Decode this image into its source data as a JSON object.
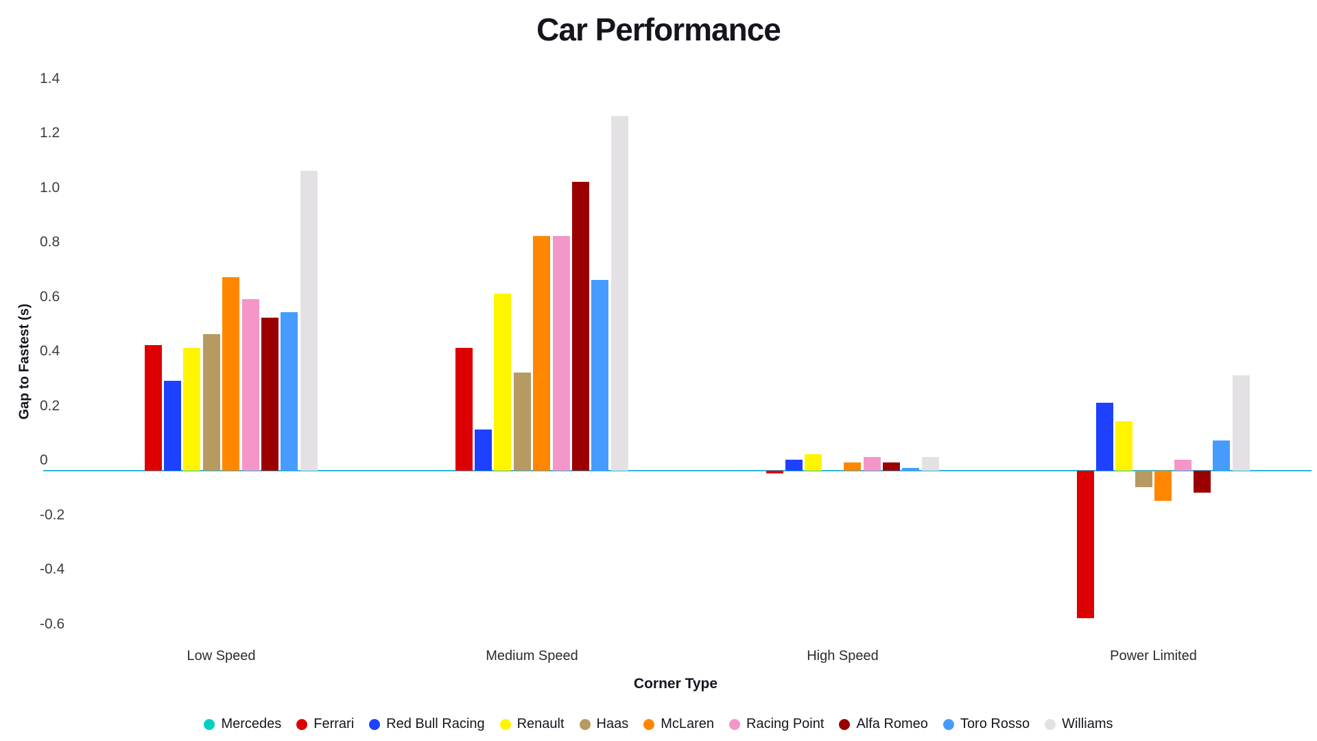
{
  "title": "Car Performance",
  "chart_data": {
    "type": "bar",
    "title": "Car Performance",
    "xlabel": "Corner Type",
    "ylabel": "Gap to Fastest (s)",
    "categories": [
      "Low Speed",
      "Medium Speed",
      "High Speed",
      "Power Limited"
    ],
    "series": [
      {
        "name": "Mercedes",
        "color": "#00D2BE",
        "values": [
          0.0,
          0.0,
          0.0,
          0.0
        ]
      },
      {
        "name": "Ferrari",
        "color": "#DC0000",
        "values": [
          0.46,
          0.45,
          -0.01,
          -0.54
        ]
      },
      {
        "name": "Red Bull Racing",
        "color": "#1E41FF",
        "values": [
          0.33,
          0.15,
          0.04,
          0.25
        ]
      },
      {
        "name": "Renault",
        "color": "#FFF500",
        "values": [
          0.45,
          0.65,
          0.06,
          0.18
        ]
      },
      {
        "name": "Haas",
        "color": "#B79A62",
        "values": [
          0.5,
          0.36,
          0.0,
          -0.06
        ]
      },
      {
        "name": "McLaren",
        "color": "#FF8700",
        "values": [
          0.71,
          0.86,
          0.03,
          -0.11
        ]
      },
      {
        "name": "Racing Point",
        "color": "#F596C8",
        "values": [
          0.63,
          0.86,
          0.05,
          0.04
        ]
      },
      {
        "name": "Alfa Romeo",
        "color": "#9B0000",
        "values": [
          0.56,
          1.06,
          0.03,
          -0.08
        ]
      },
      {
        "name": "Toro Rosso",
        "color": "#469BFF",
        "values": [
          0.58,
          0.7,
          0.01,
          0.11
        ]
      },
      {
        "name": "Williams",
        "color": "#E3E1E4",
        "values": [
          1.1,
          1.3,
          0.05,
          0.35
        ]
      }
    ],
    "ytick_labels": [
      "1.4",
      "1.2",
      "1.0",
      "0.8",
      "0.6",
      "0.4",
      "0.2",
      "0",
      "-0.2",
      "-0.4",
      "-0.6"
    ],
    "yticks": [
      1.4,
      1.2,
      1.0,
      0.8,
      0.6,
      0.4,
      0.2,
      0,
      -0.2,
      -0.4,
      -0.6
    ],
    "ylim": [
      -0.6,
      1.4
    ],
    "grid": false,
    "legend_position": "bottom",
    "zero_line_color": "#2CB5D8"
  }
}
